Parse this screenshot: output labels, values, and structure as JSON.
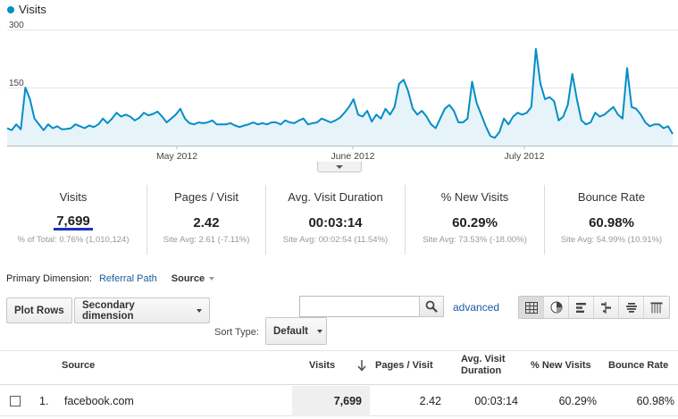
{
  "chart": {
    "legend_label": "Visits",
    "series_color": "#058dc7",
    "y_ticks": [
      "300",
      "150"
    ],
    "x_ticks": [
      "May 2012",
      "June 2012",
      "July 2012"
    ]
  },
  "chart_data": {
    "type": "area",
    "title": "",
    "xlabel": "",
    "ylabel": "",
    "ylim": [
      0,
      300
    ],
    "grid": true,
    "legend_position": "top-left",
    "y_tick_values": [
      150,
      300
    ],
    "x_tick_labels": [
      "May 2012",
      "June 2012",
      "July 2012"
    ],
    "series": [
      {
        "name": "Visits",
        "values": [
          45,
          40,
          55,
          42,
          150,
          120,
          70,
          55,
          40,
          55,
          45,
          50,
          42,
          43,
          45,
          55,
          50,
          45,
          52,
          48,
          55,
          70,
          58,
          70,
          85,
          75,
          80,
          75,
          65,
          72,
          85,
          78,
          82,
          88,
          75,
          60,
          70,
          80,
          95,
          70,
          58,
          55,
          60,
          58,
          60,
          65,
          55,
          55,
          55,
          58,
          52,
          48,
          52,
          55,
          60,
          55,
          58,
          55,
          60,
          60,
          55,
          65,
          60,
          58,
          65,
          70,
          55,
          58,
          60,
          70,
          65,
          60,
          65,
          72,
          85,
          100,
          120,
          80,
          75,
          90,
          62,
          80,
          70,
          95,
          80,
          100,
          160,
          170,
          140,
          95,
          80,
          90,
          75,
          55,
          45,
          70,
          95,
          105,
          90,
          60,
          60,
          70,
          165,
          110,
          80,
          50,
          25,
          20,
          35,
          70,
          55,
          75,
          85,
          80,
          85,
          100,
          250,
          160,
          120,
          125,
          115,
          65,
          75,
          105,
          185,
          120,
          65,
          55,
          60,
          85,
          75,
          80,
          90,
          100,
          80,
          70,
          200,
          100,
          95,
          80,
          60,
          50,
          55,
          55,
          45,
          50,
          30
        ],
        "color": "#058dc7"
      }
    ]
  },
  "scorecards": [
    {
      "label": "Visits",
      "value": "7,699",
      "sub": "% of Total: 0.76% (1,010,124)"
    },
    {
      "label": "Pages / Visit",
      "value": "2.42",
      "sub": "Site Avg: 2.61 (-7.11%)"
    },
    {
      "label": "Avg. Visit Duration",
      "value": "00:03:14",
      "sub": "Site Avg: 00:02:54 (11.54%)"
    },
    {
      "label": "% New Visits",
      "value": "60.29%",
      "sub": "Site Avg: 73.53% (-18.00%)"
    },
    {
      "label": "Bounce Rate",
      "value": "60.98%",
      "sub": "Site Avg: 54.99% (10.91%)"
    }
  ],
  "dimension": {
    "label": "Primary Dimension:",
    "referral_path": "Referral Path",
    "source": "Source"
  },
  "toolbar": {
    "plot_rows": "Plot Rows",
    "secondary_dimension": "Secondary dimension",
    "search_placeholder": "",
    "advanced": "advanced",
    "view_icons": [
      "grid-view-icon",
      "pie-view-icon",
      "bar-view-icon",
      "comparison-view-icon",
      "term-cloud-icon",
      "pivot-view-icon"
    ]
  },
  "sort": {
    "label": "Sort Type:",
    "value": "Default"
  },
  "table": {
    "headers": {
      "source": "Source",
      "visits": "Visits",
      "pages_visit": "Pages / Visit",
      "avg_duration": "Avg. Visit Duration",
      "new_visits": "% New Visits",
      "bounce": "Bounce Rate"
    },
    "rows": [
      {
        "index": "1.",
        "source": "facebook.com",
        "visits": "7,699",
        "pages_visit": "2.42",
        "avg_duration": "00:03:14",
        "new_visits": "60.29%",
        "bounce": "60.98%"
      }
    ]
  }
}
